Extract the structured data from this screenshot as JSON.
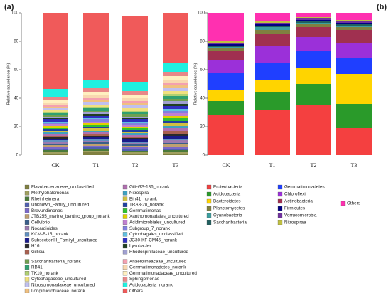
{
  "chart_data": [
    {
      "type": "stacked_bar",
      "panel_label": "(a)",
      "y_label": "Relative abundance (%)",
      "categories": [
        "CK",
        "T1",
        "T2",
        "T3"
      ],
      "ylim": [
        0,
        100
      ],
      "yticks": [
        0,
        20,
        40,
        60,
        80,
        100
      ],
      "series": [
        {
          "name": "Flavobacteriaceae_unclassified",
          "color": "#808040",
          "values": [
            1,
            2,
            1,
            1
          ]
        },
        {
          "name": "Methylohalomonas",
          "color": "#a0a060",
          "values": [
            1,
            1,
            1,
            1
          ]
        },
        {
          "name": "Rheinheimera",
          "color": "#4a7a3a",
          "values": [
            1.5,
            1,
            1,
            1.5
          ]
        },
        {
          "name": "Unknown_Family_uncultured",
          "color": "#5060b0",
          "values": [
            1,
            1.5,
            1,
            1
          ]
        },
        {
          "name": "Brevundimonas",
          "color": "#7b68c8",
          "values": [
            1,
            1,
            1.5,
            1
          ]
        },
        {
          "name": "JTB255_marine_benthic_group_norank",
          "color": "#c0a070",
          "values": [
            1.5,
            1,
            1,
            2
          ]
        },
        {
          "name": "Cellvibrio",
          "color": "#3a5f8a",
          "values": [
            1,
            1.5,
            1,
            1
          ]
        },
        {
          "name": "Nocardioides",
          "color": "#9a7ab0",
          "values": [
            1,
            1,
            1,
            2
          ]
        },
        {
          "name": "KCM-B-15_norank",
          "color": "#6090c0",
          "values": [
            1.5,
            1,
            1,
            1
          ]
        },
        {
          "name": "SubsectionIII_FamilyI_uncultured",
          "color": "#1a1a8a",
          "values": [
            1,
            1.5,
            1.5,
            2
          ]
        },
        {
          "name": "H16",
          "color": "#2a2a2a",
          "values": [
            1,
            1,
            1,
            1.5
          ]
        },
        {
          "name": "Gillisia",
          "color": "#a86050",
          "values": [
            1,
            1,
            1,
            2
          ]
        },
        {
          "name": "Gitt-GS-136_norank",
          "color": "#b070b0",
          "values": [
            1.5,
            1.5,
            1,
            2
          ]
        },
        {
          "name": "Nitrospira",
          "color": "#40a0c0",
          "values": [
            1,
            1,
            1.5,
            1.5
          ]
        },
        {
          "name": "Bin41_norank",
          "color": "#d0c040",
          "values": [
            1,
            2,
            1,
            2
          ]
        },
        {
          "name": "TRA3-20_norank",
          "color": "#2040a0",
          "values": [
            1,
            1,
            1,
            1.5
          ]
        },
        {
          "name": "Gemmatimonas",
          "color": "#30c030",
          "values": [
            1,
            1,
            1.5,
            2
          ]
        },
        {
          "name": "Xanthomonadales_uncultured",
          "color": "#e0d000",
          "values": [
            1.5,
            1.5,
            1,
            1.5
          ]
        },
        {
          "name": "Acidimicrobiales_uncultured",
          "color": "#c080d0",
          "values": [
            1,
            1,
            1,
            2
          ]
        },
        {
          "name": "Subgroup_7_norank",
          "color": "#8080e0",
          "values": [
            1,
            1.5,
            1.5,
            1.5
          ]
        },
        {
          "name": "Cytophagales_unclassified",
          "color": "#60c0e0",
          "values": [
            1,
            1,
            1,
            1.5
          ]
        },
        {
          "name": "JG30-KF-CM45_norank",
          "color": "#3030c0",
          "values": [
            1.5,
            1.5,
            1.5,
            2
          ]
        },
        {
          "name": "Lysobacter",
          "color": "#204020",
          "values": [
            1,
            1,
            1,
            1.5
          ]
        },
        {
          "name": "Rhodospirillaceae_uncultured",
          "color": "#a0a0d0",
          "values": [
            1,
            1.5,
            1,
            2
          ]
        },
        {
          "name": "Saccharibacteria_norank",
          "color": "#70a050",
          "values": [
            1,
            1,
            1.5,
            1.5
          ]
        },
        {
          "name": "RB41",
          "color": "#30a070",
          "values": [
            1.5,
            2,
            1.5,
            2
          ]
        },
        {
          "name": "TK10_norank",
          "color": "#b0d070",
          "values": [
            1,
            1,
            1,
            1.5
          ]
        },
        {
          "name": "Cytophagaceae_uncultured",
          "color": "#f0e080",
          "values": [
            1,
            1.5,
            2,
            2
          ]
        },
        {
          "name": "Nitrosomonadaceae_uncultured",
          "color": "#c0c0f0",
          "values": [
            1.5,
            2,
            2,
            2
          ]
        },
        {
          "name": "Longimicrobiaceae_norank",
          "color": "#f0c080",
          "values": [
            1,
            1.5,
            1.5,
            2
          ]
        },
        {
          "name": "Anaerolineaceae_uncultured",
          "color": "#f4a0b0",
          "values": [
            1,
            1,
            1.5,
            1.5
          ]
        },
        {
          "name": "Gemmatimonadetes_norank",
          "color": "#f8d8b0",
          "values": [
            1.5,
            2,
            2,
            2.5
          ]
        },
        {
          "name": "Gemmatimonadaceae_uncultured",
          "color": "#fff0c0",
          "values": [
            2,
            2,
            2,
            2.5
          ]
        },
        {
          "name": "Sphingomonas",
          "color": "#e88888",
          "values": [
            2,
            3,
            3,
            3
          ]
        },
        {
          "name": "Acidobacteria_norank",
          "color": "#20f0e0",
          "values": [
            6,
            6,
            6,
            6
          ]
        },
        {
          "name": "Others",
          "color": "#f05a5a",
          "values": [
            54,
            47,
            47,
            39
          ]
        }
      ]
    },
    {
      "type": "stacked_bar",
      "panel_label": "(b)",
      "y_label": "Relative abundance (%)",
      "categories": [
        "CK",
        "T1",
        "T2",
        "T3"
      ],
      "ylim": [
        0,
        100
      ],
      "yticks": [
        0,
        20,
        40,
        60,
        80,
        100
      ],
      "series": [
        {
          "name": "Proteobacteria",
          "color": "#f44040",
          "values": [
            28,
            32,
            35,
            19
          ]
        },
        {
          "name": "Acidobacteria",
          "color": "#2a9a2a",
          "values": [
            10,
            12,
            15,
            17
          ]
        },
        {
          "name": "Bacteroidetes",
          "color": "#ffd400",
          "values": [
            8,
            9,
            11,
            21
          ]
        },
        {
          "name": "Gemmatimonadetes",
          "color": "#1f3fff",
          "values": [
            12,
            12,
            12,
            11
          ]
        },
        {
          "name": "Chloroflexi",
          "color": "#9b30d9",
          "values": [
            9,
            12,
            10,
            11
          ]
        },
        {
          "name": "Actinobacteria",
          "color": "#a03050",
          "values": [
            6,
            8,
            7,
            9
          ]
        },
        {
          "name": "Planctomycetes",
          "color": "#808040",
          "values": [
            2,
            3,
            2,
            2
          ]
        },
        {
          "name": "Cyanobacteria",
          "color": "#3aa0a0",
          "values": [
            1,
            2,
            1,
            1
          ]
        },
        {
          "name": "Saccharibacteria",
          "color": "#206060",
          "values": [
            1,
            1,
            1,
            1
          ]
        },
        {
          "name": "Firmicutes",
          "color": "#000080",
          "values": [
            1,
            1,
            1,
            1
          ]
        },
        {
          "name": "Verrucomicrobia",
          "color": "#7030a0",
          "values": [
            1,
            1,
            1,
            1
          ]
        },
        {
          "name": "Nitrospirae",
          "color": "#c0c040",
          "values": [
            1,
            1,
            1,
            1
          ]
        },
        {
          "name": "Others",
          "color": "#ff30b0",
          "values": [
            20,
            6,
            3,
            5
          ]
        }
      ]
    }
  ]
}
